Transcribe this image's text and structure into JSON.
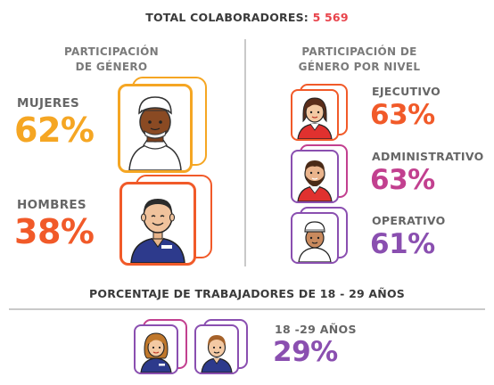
{
  "total": {
    "label": "TOTAL COLABORADORES:",
    "value": "5 569",
    "value_color": "#e8434b"
  },
  "gender": {
    "title_line1": "PARTICIPACIÓN",
    "title_line2": "DE GÉNERO",
    "women": {
      "label": "MUJERES",
      "value": "62%",
      "color": "#f5a623"
    },
    "men": {
      "label": "HOMBRES",
      "value": "38%",
      "color": "#f15a29"
    }
  },
  "levels": {
    "title_line1": "PARTICIPACIÓN DE",
    "title_line2": "GÉNERO POR NIVEL",
    "items": [
      {
        "label": "EJECUTIVO",
        "value": "63%",
        "color": "#f15a29"
      },
      {
        "label": "ADMINISTRATIVO",
        "value": "63%",
        "color": "#c2408f"
      },
      {
        "label": "OPERATIVO",
        "value": "61%",
        "color": "#8a4fb0"
      }
    ]
  },
  "age": {
    "title": "PORCENTAJE DE TRABAJADORES DE 18 - 29 AÑOS",
    "label": "18 -29 AÑOS",
    "value": "29%",
    "color": "#8a4fb0"
  },
  "colors": {
    "orange": "#f15a29",
    "yellow": "#f5a623",
    "purple": "#8a4fb0",
    "magenta": "#c2408f",
    "navy": "#2d3a8c",
    "red": "#e0312f"
  },
  "icons": [
    "woman-chef-icon",
    "man-worker-icon",
    "woman-executive-icon",
    "bearded-man-icon",
    "man-chef-icon",
    "woman-worker-icon",
    "man-worker-small-icon"
  ]
}
